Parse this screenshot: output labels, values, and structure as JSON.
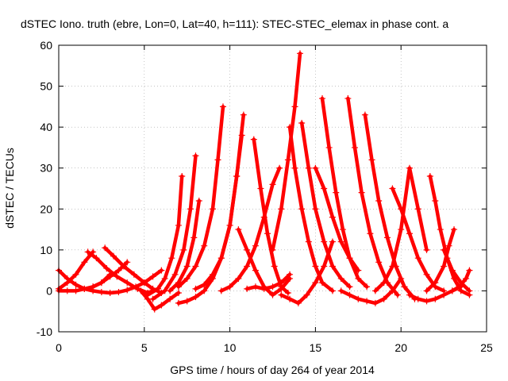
{
  "chart_data": {
    "type": "scatter",
    "title": "dSTEC Iono. truth (ebre, Lon=0, Lat=40, h=111): STEC-STEC_elemax in phase cont. a",
    "xlabel": "GPS time / hours of day 264 of year 2014",
    "ylabel": "dSTEC  / TECUs",
    "xlim": [
      0,
      25
    ],
    "ylim": [
      -10,
      60
    ],
    "x_ticks": [
      "0",
      "5",
      "10",
      "15",
      "20",
      "25"
    ],
    "y_ticks": [
      "-10",
      "0",
      "10",
      "20",
      "30",
      "40",
      "50",
      "60"
    ],
    "grid": true,
    "marker": "+",
    "color": "#ff0000",
    "series": [
      {
        "x": [
          0.0,
          0.5,
          1.0,
          1.5,
          2.0,
          2.5,
          3.0,
          3.5,
          4.0,
          4.5,
          5.0,
          5.5,
          6.0
        ],
        "y": [
          5.0,
          3.0,
          1.5,
          0.5,
          0.0,
          -0.3,
          -0.5,
          -0.3,
          0.2,
          1.0,
          2.0,
          3.5,
          5.0
        ]
      },
      {
        "x": [
          0.0,
          0.5,
          1.0,
          1.5,
          2.0
        ],
        "y": [
          0.5,
          2.0,
          4.0,
          7.0,
          9.5
        ]
      },
      {
        "x": [
          0.0,
          0.5,
          1.0,
          1.5,
          2.0,
          2.5,
          3.0
        ],
        "y": [
          0.0,
          0.0,
          0.0,
          0.5,
          1.0,
          2.0,
          4.0
        ]
      },
      {
        "x": [
          1.7,
          2.2,
          2.8,
          3.4,
          4.0,
          4.6,
          5.2,
          5.8
        ],
        "y": [
          9.5,
          8.0,
          5.5,
          3.5,
          2.0,
          0.5,
          -0.5,
          0.5
        ]
      },
      {
        "x": [
          2.7,
          3.2,
          3.8,
          4.4,
          5.0,
          5.5,
          6.0
        ],
        "y": [
          10.5,
          8.5,
          6.0,
          4.0,
          2.0,
          0.5,
          -0.5
        ]
      },
      {
        "x": [
          2.0,
          2.5,
          3.0,
          3.5,
          4.0
        ],
        "y": [
          1.0,
          2.0,
          3.5,
          5.0,
          7.0
        ]
      },
      {
        "x": [
          4.8,
          5.2,
          5.6,
          6.0,
          6.5,
          7.0
        ],
        "y": [
          0.0,
          -2.0,
          -4.5,
          -3.5,
          -2.0,
          -0.5
        ]
      },
      {
        "x": [
          5.2,
          5.8,
          6.2,
          6.6,
          7.0,
          7.2
        ],
        "y": [
          -1.0,
          0.5,
          3.0,
          8.0,
          16.0,
          28.0
        ]
      },
      {
        "x": [
          5.5,
          6.2,
          6.8,
          7.3,
          7.7,
          8.0
        ],
        "y": [
          -2.0,
          0.0,
          4.0,
          10.0,
          20.0,
          33.0
        ]
      },
      {
        "x": [
          6.5,
          7.0,
          7.5,
          7.9,
          8.2
        ],
        "y": [
          0.0,
          2.0,
          6.0,
          13.0,
          22.0
        ]
      },
      {
        "x": [
          7.0,
          7.5,
          8.0,
          8.5,
          9.0,
          9.3,
          9.6
        ],
        "y": [
          1.0,
          3.0,
          6.0,
          11.0,
          20.0,
          32.0,
          45.0
        ]
      },
      {
        "x": [
          7.0,
          7.5,
          8.0,
          8.5,
          9.0,
          9.5,
          10.0,
          10.4,
          10.8
        ],
        "y": [
          -3.0,
          -2.5,
          -1.5,
          0.0,
          3.0,
          8.0,
          16.0,
          28.0,
          43.0
        ]
      },
      {
        "x": [
          8.0,
          8.5,
          9.0,
          9.5,
          10.0,
          10.4,
          10.7
        ],
        "y": [
          0.5,
          1.5,
          4.0,
          8.0,
          16.0,
          28.0,
          38.0
        ]
      },
      {
        "x": [
          9.5,
          10.0,
          10.5,
          11.0,
          11.5,
          12.0,
          12.5,
          12.9
        ],
        "y": [
          0.0,
          1.0,
          3.0,
          6.0,
          11.0,
          18.0,
          26.0,
          30.0
        ]
      },
      {
        "x": [
          10.5,
          11.0,
          11.5,
          12.0,
          12.5,
          13.0,
          13.5
        ],
        "y": [
          15.0,
          10.0,
          5.0,
          1.0,
          -1.0,
          0.5,
          3.0
        ]
      },
      {
        "x": [
          11.4,
          11.8,
          12.2,
          12.6,
          13.0,
          13.4
        ],
        "y": [
          37.0,
          25.0,
          14.0,
          6.0,
          1.0,
          -0.5
        ]
      },
      {
        "x": [
          11.0,
          11.5,
          12.0,
          12.5,
          13.0,
          13.5
        ],
        "y": [
          0.5,
          1.0,
          0.5,
          1.0,
          2.0,
          4.0
        ]
      },
      {
        "x": [
          12.5,
          13.0,
          13.4,
          13.8,
          14.1
        ],
        "y": [
          10.0,
          20.0,
          32.0,
          45.0,
          58.0
        ]
      },
      {
        "x": [
          13.5,
          13.8,
          14.2,
          14.6,
          15.0,
          15.4,
          16.0
        ],
        "y": [
          40.0,
          30.0,
          20.0,
          12.0,
          6.0,
          2.0,
          0.0
        ]
      },
      {
        "x": [
          14.2,
          14.6,
          15.0,
          15.5,
          16.0,
          16.5,
          17.0
        ],
        "y": [
          41.0,
          30.0,
          20.0,
          12.0,
          6.0,
          3.0,
          1.0
        ]
      },
      {
        "x": [
          13.0,
          13.5,
          14.0,
          14.5,
          15.0,
          15.5,
          16.0
        ],
        "y": [
          -1.0,
          -2.0,
          -3.0,
          -1.0,
          2.0,
          6.0,
          12.0
        ]
      },
      {
        "x": [
          15.4,
          15.8,
          16.2,
          16.6,
          17.0,
          17.5,
          18.0
        ],
        "y": [
          47.0,
          35.0,
          24.0,
          15.0,
          8.0,
          3.0,
          1.0
        ]
      },
      {
        "x": [
          15.0,
          15.5,
          16.0,
          16.5,
          17.0,
          17.5
        ],
        "y": [
          30.0,
          25.0,
          18.0,
          12.0,
          8.0,
          5.0
        ]
      },
      {
        "x": [
          16.9,
          17.3,
          17.7,
          18.2,
          18.7,
          19.2,
          19.8
        ],
        "y": [
          47.0,
          35.0,
          24.0,
          14.0,
          7.0,
          2.0,
          -1.0
        ]
      },
      {
        "x": [
          17.9,
          18.3,
          18.7,
          19.2,
          19.7,
          20.2,
          20.8
        ],
        "y": [
          43.0,
          32.0,
          22.0,
          13.0,
          6.0,
          1.0,
          -2.0
        ]
      },
      {
        "x": [
          16.5,
          17.0,
          17.5,
          18.0,
          18.5,
          19.0,
          19.5,
          20.0
        ],
        "y": [
          0.0,
          -1.0,
          -2.0,
          -2.5,
          -3.0,
          -2.0,
          0.0,
          3.0
        ]
      },
      {
        "x": [
          18.5,
          19.0,
          19.5,
          20.0,
          20.5,
          21.0,
          21.5
        ],
        "y": [
          0.0,
          2.0,
          6.0,
          15.0,
          30.0,
          20.0,
          10.0
        ]
      },
      {
        "x": [
          19.5,
          20.0,
          20.5,
          21.0,
          21.5,
          22.0,
          22.5
        ],
        "y": [
          25.0,
          20.0,
          14.0,
          8.0,
          4.0,
          1.0,
          0.0
        ]
      },
      {
        "x": [
          20.5,
          21.0,
          21.5,
          22.0,
          22.5,
          23.0,
          23.5
        ],
        "y": [
          -1.0,
          -2.0,
          -2.5,
          -2.0,
          -1.0,
          0.0,
          1.0
        ]
      },
      {
        "x": [
          21.7,
          22.0,
          22.3,
          22.7,
          23.1,
          23.5,
          24.0
        ],
        "y": [
          28.0,
          22.0,
          15.0,
          8.0,
          3.0,
          0.0,
          -1.0
        ]
      },
      {
        "x": [
          21.5,
          22.0,
          22.5,
          22.8,
          23.1
        ],
        "y": [
          0.0,
          2.0,
          6.0,
          11.0,
          15.0
        ]
      },
      {
        "x": [
          22.5,
          23.0,
          23.5,
          24.0
        ],
        "y": [
          10.0,
          5.0,
          2.0,
          0.0
        ]
      },
      {
        "x": [
          23.0,
          23.4,
          23.8,
          24.0
        ],
        "y": [
          0.0,
          1.0,
          3.0,
          5.0
        ]
      }
    ]
  }
}
